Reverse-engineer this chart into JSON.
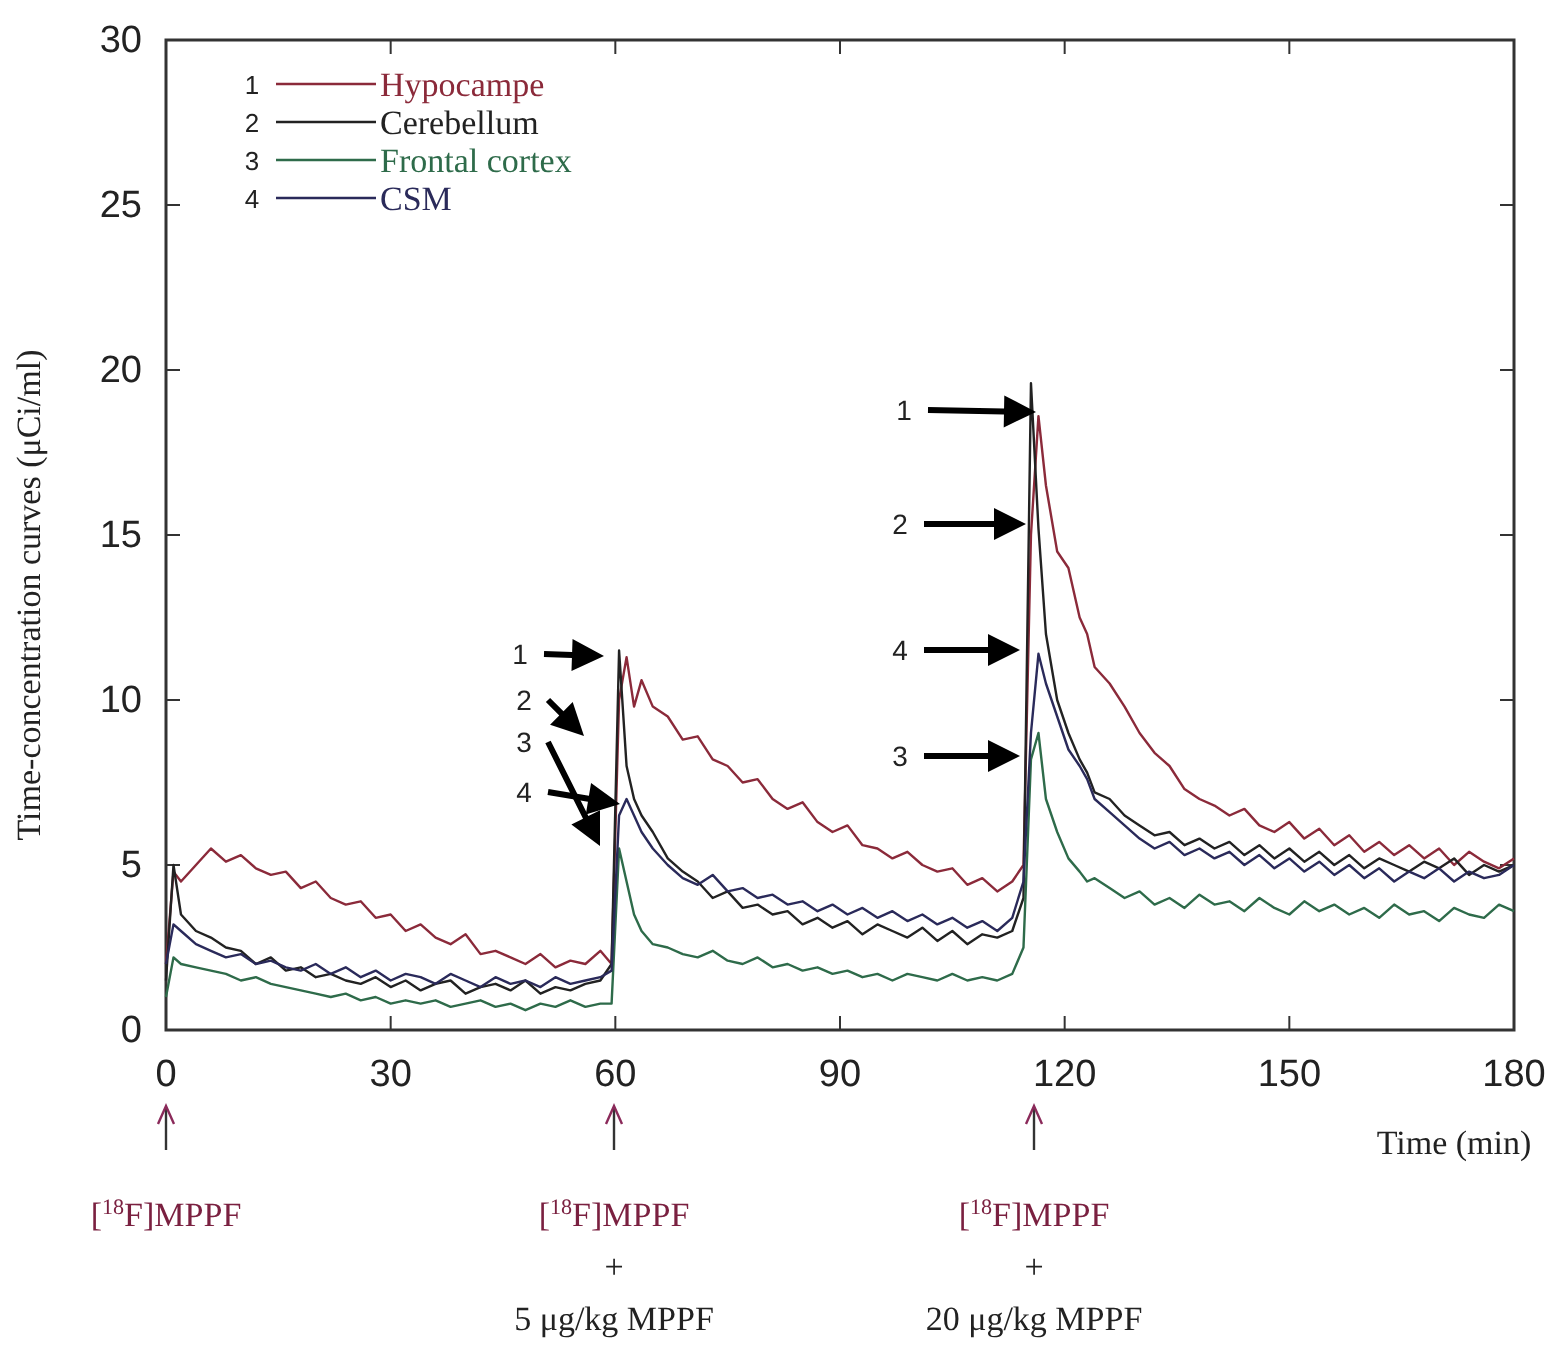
{
  "chart_data": {
    "type": "line",
    "xlabel": "Time (min)",
    "ylabel": "Time-concentration curves (μCi/ml)",
    "xlim": [
      0,
      180
    ],
    "ylim": [
      0,
      30
    ],
    "xticks": [
      0,
      30,
      60,
      90,
      120,
      150,
      180
    ],
    "yticks": [
      0,
      5,
      10,
      15,
      20,
      25,
      30
    ],
    "grid": false,
    "legend": "top left",
    "line_style": "solid",
    "marker": "none",
    "x": [
      0,
      1,
      2,
      4,
      6,
      8,
      10,
      12,
      14,
      16,
      18,
      20,
      22,
      24,
      26,
      28,
      30,
      32,
      34,
      36,
      38,
      40,
      42,
      44,
      46,
      48,
      50,
      52,
      54,
      56,
      58,
      59.5,
      60.5,
      61.5,
      62.5,
      63.5,
      65,
      67,
      69,
      71,
      73,
      75,
      77,
      79,
      81,
      83,
      85,
      87,
      89,
      91,
      93,
      95,
      97,
      99,
      101,
      103,
      105,
      107,
      109,
      111,
      113,
      114.5,
      115.5,
      116.5,
      117.5,
      119,
      120.5,
      122,
      123,
      124,
      126,
      128,
      130,
      132,
      134,
      136,
      138,
      140,
      142,
      144,
      146,
      148,
      150,
      152,
      154,
      156,
      158,
      160,
      162,
      164,
      166,
      168,
      170,
      172,
      174,
      176,
      178,
      180
    ],
    "series": [
      {
        "name": "Hypocampe",
        "color": "#8b2a3a",
        "values": [
          2.0,
          4.8,
          4.5,
          5.0,
          5.5,
          5.1,
          5.3,
          4.9,
          4.7,
          4.8,
          4.3,
          4.5,
          4.0,
          3.8,
          3.9,
          3.4,
          3.5,
          3.0,
          3.2,
          2.8,
          2.6,
          2.9,
          2.3,
          2.4,
          2.2,
          2.0,
          2.3,
          1.9,
          2.1,
          2.0,
          2.4,
          2.0,
          10.0,
          11.3,
          9.8,
          10.6,
          9.8,
          9.5,
          8.8,
          8.9,
          8.2,
          8.0,
          7.5,
          7.6,
          7.0,
          6.7,
          6.9,
          6.3,
          6.0,
          6.2,
          5.6,
          5.5,
          5.2,
          5.4,
          5.0,
          4.8,
          4.9,
          4.4,
          4.6,
          4.2,
          4.5,
          5.0,
          15.0,
          18.6,
          16.5,
          14.5,
          14.0,
          12.5,
          12.0,
          11.0,
          10.5,
          9.8,
          9.0,
          8.4,
          8.0,
          7.3,
          7.0,
          6.8,
          6.5,
          6.7,
          6.2,
          6.0,
          6.3,
          5.8,
          6.1,
          5.6,
          5.9,
          5.4,
          5.7,
          5.3,
          5.6,
          5.2,
          5.5,
          5.0,
          5.4,
          5.1,
          4.9,
          5.2
        ]
      },
      {
        "name": "Cerebellum",
        "color": "#222222",
        "values": [
          1.5,
          5.0,
          3.5,
          3.0,
          2.8,
          2.5,
          2.4,
          2.0,
          2.2,
          1.8,
          1.9,
          1.6,
          1.7,
          1.5,
          1.4,
          1.6,
          1.3,
          1.5,
          1.2,
          1.4,
          1.5,
          1.1,
          1.3,
          1.4,
          1.2,
          1.5,
          1.1,
          1.3,
          1.2,
          1.4,
          1.5,
          2.0,
          11.5,
          8.0,
          7.0,
          6.5,
          6.0,
          5.2,
          4.8,
          4.5,
          4.0,
          4.2,
          3.7,
          3.8,
          3.5,
          3.6,
          3.2,
          3.4,
          3.1,
          3.3,
          2.9,
          3.2,
          3.0,
          2.8,
          3.1,
          2.7,
          3.0,
          2.6,
          2.9,
          2.8,
          3.0,
          4.0,
          19.6,
          15.2,
          12.0,
          10.0,
          9.0,
          8.2,
          7.8,
          7.2,
          7.0,
          6.5,
          6.2,
          5.9,
          6.0,
          5.6,
          5.8,
          5.5,
          5.7,
          5.3,
          5.6,
          5.2,
          5.5,
          5.1,
          5.4,
          5.0,
          5.3,
          4.9,
          5.2,
          5.0,
          4.8,
          5.1,
          4.9,
          5.2,
          4.7,
          5.0,
          4.8,
          5.0
        ]
      },
      {
        "name": "Frontal cortex",
        "color": "#2e6b4a",
        "values": [
          1.0,
          2.2,
          2.0,
          1.9,
          1.8,
          1.7,
          1.5,
          1.6,
          1.4,
          1.3,
          1.2,
          1.1,
          1.0,
          1.1,
          0.9,
          1.0,
          0.8,
          0.9,
          0.8,
          0.9,
          0.7,
          0.8,
          0.9,
          0.7,
          0.8,
          0.6,
          0.8,
          0.7,
          0.9,
          0.7,
          0.8,
          0.8,
          5.5,
          4.5,
          3.5,
          3.0,
          2.6,
          2.5,
          2.3,
          2.2,
          2.4,
          2.1,
          2.0,
          2.2,
          1.9,
          2.0,
          1.8,
          1.9,
          1.7,
          1.8,
          1.6,
          1.7,
          1.5,
          1.7,
          1.6,
          1.5,
          1.7,
          1.5,
          1.6,
          1.5,
          1.7,
          2.5,
          8.2,
          9.0,
          7.0,
          6.0,
          5.2,
          4.8,
          4.5,
          4.6,
          4.3,
          4.0,
          4.2,
          3.8,
          4.0,
          3.7,
          4.1,
          3.8,
          3.9,
          3.6,
          4.0,
          3.7,
          3.5,
          3.9,
          3.6,
          3.8,
          3.5,
          3.7,
          3.4,
          3.8,
          3.5,
          3.6,
          3.3,
          3.7,
          3.5,
          3.4,
          3.8,
          3.6
        ]
      },
      {
        "name": "CSM",
        "color": "#2a2a5a",
        "values": [
          2.0,
          3.2,
          3.0,
          2.6,
          2.4,
          2.2,
          2.3,
          2.0,
          2.1,
          1.9,
          1.8,
          2.0,
          1.7,
          1.9,
          1.6,
          1.8,
          1.5,
          1.7,
          1.6,
          1.4,
          1.7,
          1.5,
          1.3,
          1.6,
          1.4,
          1.5,
          1.3,
          1.6,
          1.4,
          1.5,
          1.6,
          1.8,
          6.5,
          7.0,
          6.5,
          6.0,
          5.5,
          5.0,
          4.6,
          4.4,
          4.7,
          4.2,
          4.3,
          4.0,
          4.1,
          3.8,
          3.9,
          3.6,
          3.8,
          3.5,
          3.7,
          3.4,
          3.6,
          3.3,
          3.5,
          3.2,
          3.4,
          3.1,
          3.3,
          3.0,
          3.4,
          4.5,
          9.0,
          11.4,
          10.5,
          9.5,
          8.5,
          8.0,
          7.6,
          7.0,
          6.6,
          6.2,
          5.8,
          5.5,
          5.7,
          5.3,
          5.5,
          5.2,
          5.4,
          5.0,
          5.3,
          4.9,
          5.2,
          4.8,
          5.1,
          4.7,
          5.0,
          4.6,
          4.9,
          4.5,
          4.8,
          4.6,
          4.9,
          4.5,
          4.8,
          4.6,
          4.7,
          5.0
        ]
      }
    ],
    "annotations": [
      "1",
      "2",
      "3",
      "4",
      "1",
      "2",
      "3",
      "4",
      "1",
      "2",
      "4",
      "3",
      "[$^{18}$F]MPPF",
      "[$^{18}$F]MPPF\n+\n5 μg/kg MPPF",
      "[$^{18}$F]MPPF\n+\n20 μg/kg MPPF"
    ]
  }
}
